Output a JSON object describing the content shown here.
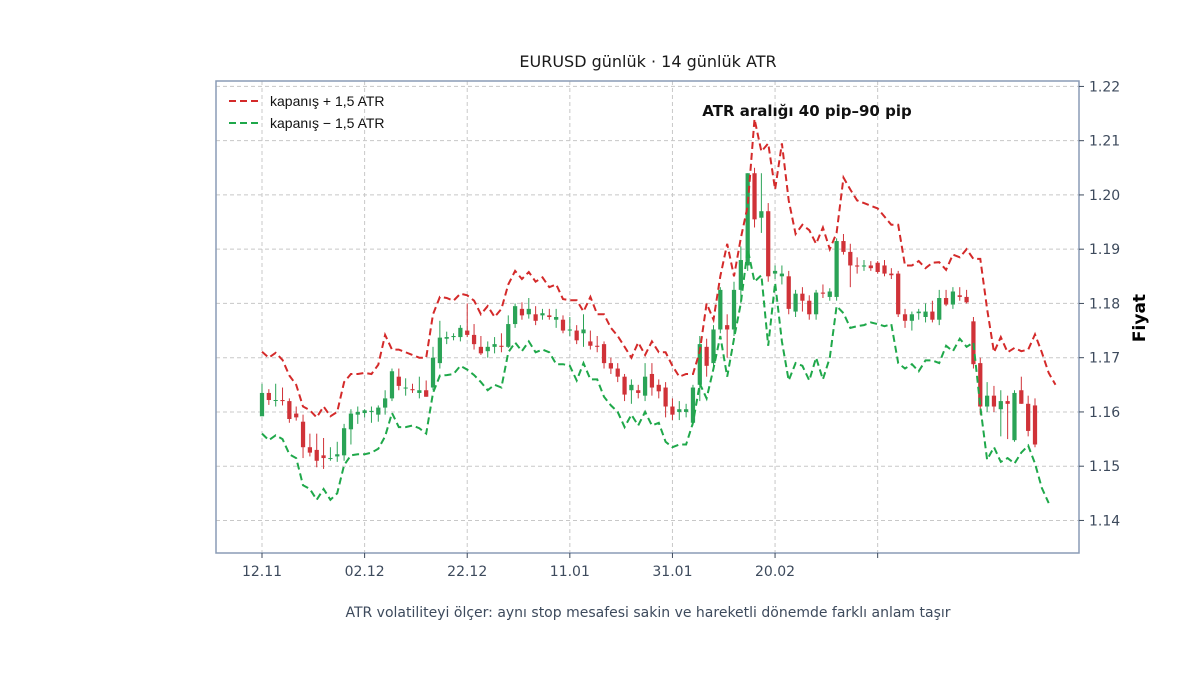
{
  "chart_data": {
    "type": "candlestick",
    "title": "EURUSD günlük · 14 günlük ATR",
    "xlabel": "",
    "ylabel": "Fiyat",
    "ylim": [
      1.134,
      1.221
    ],
    "yticks": [
      "1.14",
      "1.15",
      "1.16",
      "1.17",
      "1.18",
      "1.19",
      "1.20",
      "1.21",
      "1.22"
    ],
    "xticks": [
      "12.11",
      "02.12",
      "22.12",
      "11.01",
      "31.01",
      "20.02",
      ""
    ],
    "grid": true,
    "y_axis_side": "right",
    "legend_placement": "top-left",
    "annotation": "ATR aralığı 40 pip–90 pip",
    "caption": "ATR volatiliteyi ölçer: aynı stop mesafesi sakin ve hareketli dönemde farklı anlam taşır",
    "colors": {
      "up": "#2aa356",
      "down": "#d03238",
      "upper_band": "#d42a2a",
      "lower_band": "#1fa84a",
      "frame": "#8a9bb5"
    },
    "bands": [
      {
        "name": "kapanış + 1,5 ATR",
        "color": "#d42a2a",
        "values": [
          1.1711,
          1.17,
          1.1709,
          1.1696,
          1.1667,
          1.165,
          1.161,
          1.1603,
          1.159,
          1.161,
          1.1592,
          1.16,
          1.1655,
          1.167,
          1.167,
          1.1672,
          1.167,
          1.1687,
          1.1742,
          1.1715,
          1.1715,
          1.171,
          1.1705,
          1.17,
          1.17,
          1.178,
          1.1812,
          1.181,
          1.1805,
          1.1818,
          1.1815,
          1.1805,
          1.178,
          1.1795,
          1.1775,
          1.179,
          1.1835,
          1.186,
          1.1845,
          1.1858,
          1.184,
          1.1848,
          1.183,
          1.1835,
          1.1808,
          1.1806,
          1.1806,
          1.1785,
          1.1812,
          1.178,
          1.178,
          1.1755,
          1.174,
          1.172,
          1.17,
          1.1728,
          1.1705,
          1.173,
          1.171,
          1.171,
          1.1685,
          1.1665,
          1.167,
          1.167,
          1.1712,
          1.18,
          1.177,
          1.185,
          1.191,
          1.185,
          1.192,
          1.198,
          1.214,
          1.208,
          1.2095,
          1.201,
          1.2095,
          1.199,
          1.1928,
          1.1945,
          1.1935,
          1.191,
          1.194,
          1.19,
          1.193,
          1.2032,
          1.201,
          1.199,
          1.1985,
          1.198,
          1.1975,
          1.196,
          1.1945,
          1.1945,
          1.187,
          1.187,
          1.1878,
          1.1865,
          1.1875,
          1.1876,
          1.1862,
          1.189,
          1.1885,
          1.19,
          1.1882,
          1.1882,
          1.179,
          1.171,
          1.1738,
          1.171,
          1.1718,
          1.1712,
          1.1715,
          1.1743,
          1.171,
          1.1672,
          1.165
        ]
      },
      {
        "name": "kapanış − 1,5 ATR",
        "color": "#1fa84a",
        "values": [
          1.156,
          1.1548,
          1.1557,
          1.155,
          1.1522,
          1.1515,
          1.1465,
          1.1458,
          1.1438,
          1.1458,
          1.1438,
          1.145,
          1.1502,
          1.152,
          1.1522,
          1.1522,
          1.1525,
          1.1532,
          1.1555,
          1.1598,
          1.1572,
          1.1572,
          1.1575,
          1.157,
          1.156,
          1.1635,
          1.1667,
          1.1668,
          1.167,
          1.1685,
          1.1678,
          1.1668,
          1.1655,
          1.164,
          1.165,
          1.1645,
          1.171,
          1.1728,
          1.1712,
          1.173,
          1.171,
          1.1715,
          1.171,
          1.1688,
          1.1688,
          1.1685,
          1.1658,
          1.169,
          1.166,
          1.166,
          1.1628,
          1.1612,
          1.16,
          1.1572,
          1.1595,
          1.1575,
          1.16,
          1.1575,
          1.158,
          1.1545,
          1.1535,
          1.154,
          1.154,
          1.158,
          1.1652,
          1.1625,
          1.168,
          1.174,
          1.1665,
          1.1735,
          1.18,
          1.19,
          1.184,
          1.1852,
          1.1722,
          1.1838,
          1.173,
          1.1658,
          1.169,
          1.1685,
          1.1658,
          1.17,
          1.166,
          1.17,
          1.1795,
          1.1782,
          1.1755,
          1.1758,
          1.176,
          1.1765,
          1.1762,
          1.1758,
          1.1762,
          1.169,
          1.168,
          1.1688,
          1.1675,
          1.1695,
          1.1695,
          1.169,
          1.1722,
          1.1712,
          1.1735,
          1.172,
          1.1728,
          1.161,
          1.1512,
          1.1535,
          1.1508,
          1.1515,
          1.1505,
          1.1525,
          1.1538,
          1.1505,
          1.146,
          1.1432
        ]
      }
    ],
    "candles": [
      [
        1.1592,
        1.1652,
        1.1593,
        1.1635
      ],
      [
        1.1635,
        1.1642,
        1.1613,
        1.1622
      ],
      [
        1.1622,
        1.1652,
        1.161,
        1.1622
      ],
      [
        1.1622,
        1.1645,
        1.1612,
        1.162
      ],
      [
        1.162,
        1.1625,
        1.158,
        1.1587
      ],
      [
        1.1597,
        1.161,
        1.1584,
        1.159
      ],
      [
        1.1582,
        1.1595,
        1.1515,
        1.1535
      ],
      [
        1.1535,
        1.156,
        1.1518,
        1.1525
      ],
      [
        1.153,
        1.156,
        1.1498,
        1.151
      ],
      [
        1.152,
        1.1552,
        1.1495,
        1.1515
      ],
      [
        1.1515,
        1.1535,
        1.151,
        1.1515
      ],
      [
        1.1518,
        1.1545,
        1.1508,
        1.1522
      ],
      [
        1.152,
        1.1578,
        1.151,
        1.157
      ],
      [
        1.1568,
        1.1605,
        1.154,
        1.1597
      ],
      [
        1.1595,
        1.161,
        1.1578,
        1.16
      ],
      [
        1.1598,
        1.1605,
        1.159,
        1.1603
      ],
      [
        1.16,
        1.161,
        1.158,
        1.1602
      ],
      [
        1.1595,
        1.1612,
        1.1582,
        1.1608
      ],
      [
        1.1608,
        1.164,
        1.1595,
        1.1625
      ],
      [
        1.1625,
        1.168,
        1.162,
        1.1675
      ],
      [
        1.1665,
        1.168,
        1.164,
        1.1648
      ],
      [
        1.1645,
        1.1662,
        1.163,
        1.1645
      ],
      [
        1.1642,
        1.1652,
        1.1635,
        1.164
      ],
      [
        1.1635,
        1.1665,
        1.1625,
        1.164
      ],
      [
        1.164,
        1.1658,
        1.1628,
        1.1628
      ],
      [
        1.1645,
        1.172,
        1.164,
        1.17
      ],
      [
        1.169,
        1.1768,
        1.168,
        1.1737
      ],
      [
        1.1735,
        1.1748,
        1.1725,
        1.1738
      ],
      [
        1.1738,
        1.1745,
        1.1732,
        1.174
      ],
      [
        1.1738,
        1.176,
        1.173,
        1.1755
      ],
      [
        1.175,
        1.18,
        1.1738,
        1.1742
      ],
      [
        1.1742,
        1.1762,
        1.1715,
        1.1725
      ],
      [
        1.172,
        1.174,
        1.1705,
        1.1708
      ],
      [
        1.1712,
        1.173,
        1.17,
        1.172
      ],
      [
        1.172,
        1.1738,
        1.1708,
        1.1725
      ],
      [
        1.1722,
        1.1745,
        1.171,
        1.172
      ],
      [
        1.172,
        1.1778,
        1.1718,
        1.1762
      ],
      [
        1.1762,
        1.18,
        1.1755,
        1.1795
      ],
      [
        1.179,
        1.1802,
        1.177,
        1.1778
      ],
      [
        1.178,
        1.181,
        1.1772,
        1.179
      ],
      [
        1.178,
        1.1795,
        1.176,
        1.1768
      ],
      [
        1.1778,
        1.179,
        1.177,
        1.1782
      ],
      [
        1.1778,
        1.179,
        1.177,
        1.1775
      ],
      [
        1.177,
        1.179,
        1.1755,
        1.1775
      ],
      [
        1.177,
        1.1778,
        1.1745,
        1.175
      ],
      [
        1.175,
        1.1775,
        1.174,
        1.1752
      ],
      [
        1.175,
        1.176,
        1.1725,
        1.1732
      ],
      [
        1.1745,
        1.178,
        1.172,
        1.1752
      ],
      [
        1.173,
        1.175,
        1.1715,
        1.1722
      ],
      [
        1.1722,
        1.174,
        1.171,
        1.172
      ],
      [
        1.1725,
        1.173,
        1.168,
        1.169
      ],
      [
        1.169,
        1.17,
        1.167,
        1.168
      ],
      [
        1.168,
        1.169,
        1.1655,
        1.1665
      ],
      [
        1.1665,
        1.167,
        1.162,
        1.1632
      ],
      [
        1.164,
        1.166,
        1.1615,
        1.165
      ],
      [
        1.164,
        1.165,
        1.1625,
        1.1635
      ],
      [
        1.163,
        1.169,
        1.162,
        1.1665
      ],
      [
        1.167,
        1.169,
        1.163,
        1.1645
      ],
      [
        1.165,
        1.166,
        1.1625,
        1.1638
      ],
      [
        1.1645,
        1.1655,
        1.159,
        1.161
      ],
      [
        1.161,
        1.1625,
        1.1585,
        1.1595
      ],
      [
        1.16,
        1.162,
        1.1585,
        1.1605
      ],
      [
        1.16,
        1.1615,
        1.159,
        1.1605
      ],
      [
        1.158,
        1.165,
        1.1575,
        1.1645
      ],
      [
        1.165,
        1.174,
        1.162,
        1.1725
      ],
      [
        1.172,
        1.1735,
        1.1665,
        1.1685
      ],
      [
        1.169,
        1.176,
        1.168,
        1.1752
      ],
      [
        1.1752,
        1.183,
        1.1745,
        1.1825
      ],
      [
        1.176,
        1.178,
        1.17,
        1.1752
      ],
      [
        1.1752,
        1.184,
        1.174,
        1.1825
      ],
      [
        1.1825,
        1.1905,
        1.18,
        1.188
      ],
      [
        1.187,
        1.204,
        1.186,
        1.204
      ],
      [
        1.204,
        1.205,
        1.194,
        1.1955
      ],
      [
        1.1958,
        1.204,
        1.193,
        1.197
      ],
      [
        1.197,
        1.1985,
        1.184,
        1.185
      ],
      [
        1.1855,
        1.187,
        1.1845,
        1.186
      ],
      [
        1.185,
        1.187,
        1.1835,
        1.1855
      ],
      [
        1.185,
        1.186,
        1.178,
        1.179
      ],
      [
        1.1785,
        1.1825,
        1.1775,
        1.1818
      ],
      [
        1.1818,
        1.183,
        1.1785,
        1.1805
      ],
      [
        1.1805,
        1.1815,
        1.177,
        1.178
      ],
      [
        1.178,
        1.1825,
        1.177,
        1.182
      ],
      [
        1.182,
        1.1835,
        1.181,
        1.1818
      ],
      [
        1.1812,
        1.1828,
        1.1805,
        1.1822
      ],
      [
        1.1812,
        1.192,
        1.1805,
        1.1915
      ],
      [
        1.1915,
        1.1928,
        1.189,
        1.1895
      ],
      [
        1.1895,
        1.191,
        1.183,
        1.187
      ],
      [
        1.187,
        1.1885,
        1.1855,
        1.1868
      ],
      [
        1.1868,
        1.188,
        1.186,
        1.187
      ],
      [
        1.187,
        1.1878,
        1.186,
        1.1865
      ],
      [
        1.1875,
        1.1878,
        1.1855,
        1.1858
      ],
      [
        1.187,
        1.188,
        1.185,
        1.1855
      ],
      [
        1.1855,
        1.1865,
        1.1845,
        1.1852
      ],
      [
        1.1855,
        1.186,
        1.1775,
        1.178
      ],
      [
        1.178,
        1.179,
        1.1755,
        1.1768
      ],
      [
        1.1768,
        1.1785,
        1.175,
        1.178
      ],
      [
        1.1782,
        1.179,
        1.177,
        1.1785
      ],
      [
        1.1775,
        1.18,
        1.1765,
        1.1785
      ],
      [
        1.1785,
        1.1805,
        1.1765,
        1.177
      ],
      [
        1.177,
        1.1825,
        1.176,
        1.181
      ],
      [
        1.181,
        1.1825,
        1.1795,
        1.1798
      ],
      [
        1.1798,
        1.183,
        1.179,
        1.1822
      ],
      [
        1.1815,
        1.183,
        1.1805,
        1.1812
      ],
      [
        1.1812,
        1.1825,
        1.18,
        1.1802
      ],
      [
        1.1767,
        1.1775,
        1.168,
        1.1688
      ],
      [
        1.169,
        1.17,
        1.1595,
        1.161
      ],
      [
        1.161,
        1.1655,
        1.16,
        1.163
      ],
      [
        1.163,
        1.1648,
        1.16,
        1.161
      ],
      [
        1.1605,
        1.164,
        1.1555,
        1.162
      ],
      [
        1.162,
        1.163,
        1.155,
        1.1615
      ],
      [
        1.1548,
        1.164,
        1.1545,
        1.1635
      ],
      [
        1.164,
        1.1665,
        1.1615,
        1.1615
      ],
      [
        1.1615,
        1.163,
        1.1555,
        1.1565
      ],
      [
        1.1612,
        1.1625,
        1.1535,
        1.154
      ]
    ]
  }
}
